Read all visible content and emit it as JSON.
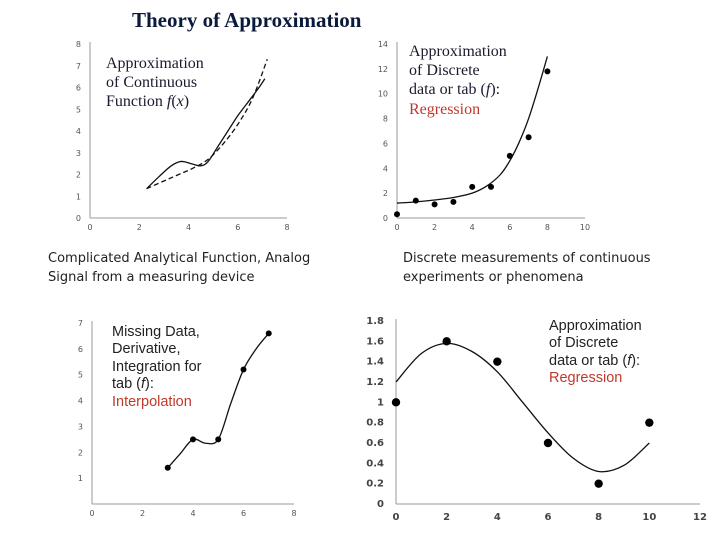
{
  "page": {
    "title": "Theory of Approximation",
    "caption_left": [
      "Complicated Analytical Function, Analog",
      "Signal from a measuring device"
    ],
    "caption_right": [
      "Discrete measurements of continuous",
      "experiments or phenomena"
    ]
  },
  "notes": {
    "tl": [
      "Approximation",
      "of Continuous",
      "Function "
    ],
    "tl_fx": "f",
    "tl_fx_open": "(",
    "tl_fx_var": "x",
    "tl_fx_close": ")",
    "tr": [
      "Approximation",
      "of Discrete",
      "data or tab ("
    ],
    "tr_f": "f",
    "tr_close": "):",
    "tr_red": "Regression",
    "bl": [
      "Missing Data,",
      "Derivative,",
      "Integration for",
      "tab ("
    ],
    "bl_f": "f",
    "bl_close": "):",
    "bl_red": "Interpolation",
    "br": [
      "Approximation",
      "of Discrete",
      "data or tab ("
    ],
    "br_f": "f",
    "br_close": "):",
    "br_red": "Regression"
  },
  "colors": {
    "title": "#0a1a3c",
    "red": "#c0392b",
    "axis": "#999999",
    "curve": "#111111"
  },
  "chart_data": [
    {
      "id": "tl",
      "type": "line",
      "xlim": [
        0,
        8
      ],
      "ylim": [
        0,
        8
      ],
      "xticks": [
        0,
        2,
        4,
        6,
        8
      ],
      "yticks": [
        0,
        1,
        2,
        3,
        4,
        5,
        6,
        7,
        8
      ],
      "series": [
        {
          "style": "solid",
          "x": [
            2.3,
            2.8,
            3.3,
            3.7,
            4.1,
            4.5,
            4.8,
            5.2,
            5.6,
            6.0,
            6.4,
            6.8,
            7.1
          ],
          "y": [
            1.35,
            1.9,
            2.4,
            2.6,
            2.5,
            2.4,
            2.6,
            3.3,
            4.0,
            4.7,
            5.3,
            5.9,
            6.4
          ]
        },
        {
          "style": "dashed",
          "x": [
            2.3,
            3.0,
            3.6,
            4.2,
            4.8,
            5.4,
            6.0,
            6.6,
            7.2
          ],
          "y": [
            1.35,
            1.7,
            2.0,
            2.3,
            2.7,
            3.4,
            4.3,
            5.5,
            7.3
          ]
        }
      ]
    },
    {
      "id": "tr",
      "type": "scatter",
      "xlim": [
        0,
        10
      ],
      "ylim": [
        0,
        14
      ],
      "xticks": [
        0,
        2,
        4,
        6,
        8,
        10
      ],
      "yticks": [
        0,
        2,
        4,
        6,
        8,
        10,
        12,
        14
      ],
      "points": {
        "x": [
          0,
          1,
          2,
          3,
          4,
          5,
          6,
          7,
          8
        ],
        "y": [
          0.3,
          1.4,
          1.1,
          1.3,
          2.5,
          2.5,
          5.0,
          6.5,
          11.8
        ]
      },
      "fit": {
        "x": [
          0,
          1,
          2,
          3,
          4,
          4.8,
          5.5,
          6.0,
          6.5,
          7.0,
          7.5,
          8.0
        ],
        "y": [
          1.2,
          1.3,
          1.45,
          1.65,
          2.0,
          2.6,
          3.5,
          4.6,
          6.1,
          8.0,
          10.4,
          13.0
        ]
      }
    },
    {
      "id": "bl",
      "type": "line",
      "xlim": [
        0,
        8
      ],
      "ylim": [
        0,
        7
      ],
      "xticks": [
        0,
        2,
        4,
        6,
        8
      ],
      "yticks": [
        1,
        2,
        3,
        4,
        5,
        6,
        7
      ],
      "points": {
        "x": [
          3,
          4,
          5,
          6,
          7
        ],
        "y": [
          1.4,
          2.5,
          2.5,
          5.2,
          6.6
        ]
      },
      "curve": {
        "x": [
          3,
          3.5,
          4,
          4.5,
          5,
          5.5,
          6,
          6.5,
          7
        ],
        "y": [
          1.4,
          1.95,
          2.5,
          2.35,
          2.5,
          3.9,
          5.2,
          6.0,
          6.6
        ]
      }
    },
    {
      "id": "br",
      "type": "scatter",
      "xlim": [
        0,
        12
      ],
      "ylim": [
        0,
        1.8
      ],
      "xticks": [
        0,
        2,
        4,
        6,
        8,
        10,
        12
      ],
      "yticks": [
        0,
        0.2,
        0.4,
        0.6,
        0.8,
        1,
        1.2,
        1.4,
        1.6,
        1.8
      ],
      "ytick_labels": [
        "0",
        "0.2",
        "0.4",
        "0.6",
        "0.8",
        "1",
        "1.2",
        "1.4",
        "1.6",
        "1.8"
      ],
      "points": {
        "x": [
          0,
          2,
          4,
          6,
          8,
          10
        ],
        "y": [
          1.0,
          1.6,
          1.4,
          0.6,
          0.2,
          0.8
        ]
      },
      "fit": {
        "x": [
          0,
          1,
          2,
          3,
          4,
          5,
          6,
          7,
          8,
          9,
          10
        ],
        "y": [
          1.2,
          1.48,
          1.58,
          1.5,
          1.3,
          1.0,
          0.7,
          0.45,
          0.32,
          0.38,
          0.6
        ]
      }
    }
  ]
}
